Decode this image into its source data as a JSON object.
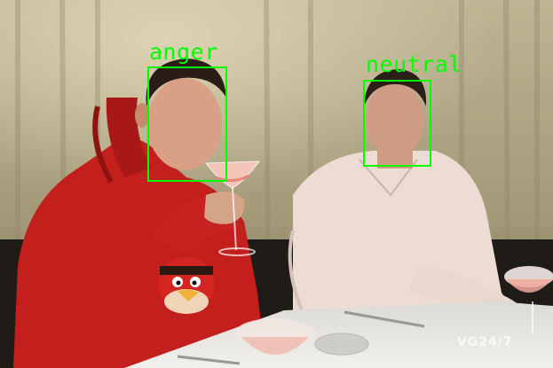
{
  "image": {
    "description_colors": {
      "curtain": "#c9c0a0",
      "red_hoodie": "#c8201e",
      "white_shirt": "#efe3dc",
      "tablecloth": "#e8e6e2",
      "detection_box": "#00ff00"
    }
  },
  "detections": [
    {
      "label": "anger"
    },
    {
      "label": "neutral"
    }
  ],
  "watermark": "VG24/7"
}
